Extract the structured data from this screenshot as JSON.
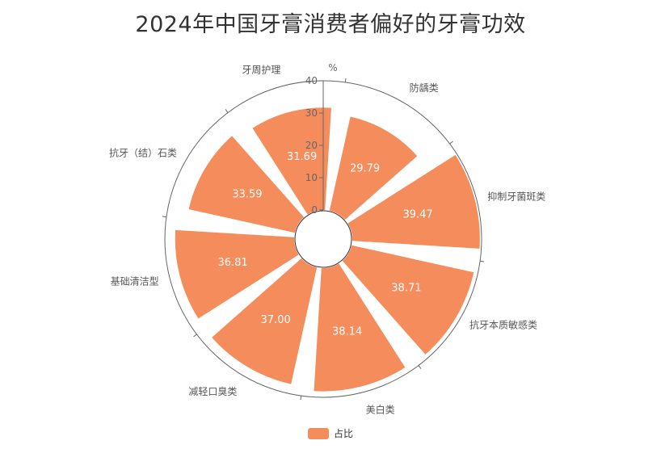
{
  "chart_data": {
    "type": "bar",
    "polar": true,
    "title": "2024年中国牙膏消费者偏好的牙膏功效",
    "unit": "%",
    "categories": [
      "防龋类",
      "抑制牙菌斑类",
      "抗牙本质敏感类",
      "美白类",
      "减轻口臭类",
      "基础清洁型",
      "抗牙（结）石类",
      "牙周护理"
    ],
    "series": [
      {
        "name": "占比",
        "values": [
          29.79,
          39.47,
          38.71,
          38.14,
          37.0,
          36.81,
          33.59,
          31.69
        ]
      }
    ],
    "ylim": [
      0,
      40
    ],
    "ticks": [
      0,
      10,
      20,
      30,
      40
    ],
    "legend": "bottom",
    "colors": {
      "bar": "#F58C5C",
      "axis": "#666666"
    }
  }
}
